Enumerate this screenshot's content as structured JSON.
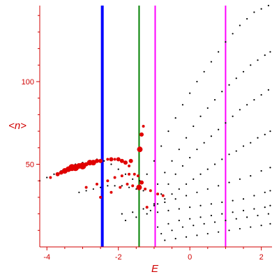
{
  "chart_data": {
    "type": "scatter",
    "title": "",
    "xlabel": "E",
    "ylabel": "<n>",
    "xlim": [
      -4.2,
      2.3
    ],
    "ylim": [
      0,
      146
    ],
    "xticks": [
      -4,
      -2,
      0,
      2
    ],
    "xtick_labels": [
      "-4",
      "-2",
      "0",
      "2"
    ],
    "yticks": [
      50,
      100
    ],
    "ytick_labels": [
      "50",
      "100"
    ],
    "grid": false,
    "colors": {
      "axis": "#d00000",
      "black_points": "#000000",
      "red_points": "#e00000"
    },
    "vertical_lines": [
      {
        "x": -2.45,
        "color": "#0000ff",
        "style": "thick"
      },
      {
        "x": -1.42,
        "color": "#008000",
        "style": "medium"
      },
      {
        "x": -0.97,
        "color": "#ff00ff",
        "style": "medium"
      },
      {
        "x": 1.0,
        "color": "#ff00ff",
        "style": "medium"
      }
    ],
    "black_series": [
      {
        "x": [
          -4.2,
          -4.0,
          -3.8,
          -3.6,
          -3.4,
          -3.2,
          -3.0,
          -2.8,
          -2.6,
          -2.4,
          -2.2,
          -2.0,
          -1.8,
          -1.6,
          -1.4,
          -1.2,
          -1.0,
          -0.8,
          -0.6,
          -0.4,
          -0.2,
          0.0,
          0.2,
          0.4,
          0.6,
          0.8,
          1.0,
          1.2,
          1.4,
          1.6,
          1.8,
          2.0,
          2.2
        ],
        "y": [
          40,
          42,
          44,
          46,
          48,
          50,
          51,
          52,
          53,
          52,
          50,
          47,
          44,
          41,
          40,
          44,
          52,
          61,
          70,
          78,
          86,
          93,
          100,
          106,
          112,
          118,
          124,
          129,
          134,
          138,
          142,
          144,
          146
        ]
      },
      {
        "x": [
          -3.1,
          -2.9,
          -2.7,
          -2.5,
          -2.3,
          -2.1,
          -1.9,
          -1.7,
          -1.5,
          -1.3,
          -1.1,
          -0.9,
          -0.7,
          -0.5,
          -0.3,
          -0.1,
          0.1,
          0.3,
          0.5,
          0.7,
          0.9,
          1.1,
          1.3,
          1.5,
          1.7,
          1.9,
          2.1,
          2.25
        ],
        "y": [
          33,
          34,
          35,
          36,
          37,
          37,
          37,
          36,
          35,
          34,
          34,
          38,
          45,
          52,
          59,
          66,
          73,
          79,
          84,
          89,
          94,
          98,
          102,
          106,
          110,
          113,
          116,
          118
        ]
      },
      {
        "x": [
          -1.0,
          -0.8,
          -0.6,
          -0.4,
          -0.2,
          0.0,
          0.2,
          0.4,
          0.6,
          0.8,
          1.0,
          1.2,
          1.4,
          1.6,
          1.8,
          2.0,
          2.2
        ],
        "y": [
          26,
          32,
          38,
          44,
          49,
          54,
          59,
          63,
          67,
          71,
          75,
          79,
          83,
          86,
          89,
          92,
          95
        ]
      },
      {
        "x": [
          -1.1,
          -0.9,
          -0.7,
          -0.5,
          -0.3,
          -0.1,
          0.1,
          0.3,
          0.5,
          0.7,
          0.9,
          1.1,
          1.3,
          1.5,
          1.7,
          1.9,
          2.1,
          2.25
        ],
        "y": [
          22,
          26,
          29,
          32,
          35,
          38,
          41,
          44,
          47,
          50,
          53,
          56,
          58,
          61,
          63,
          66,
          68,
          70
        ]
      },
      {
        "x": [
          -1.9,
          -1.6,
          -1.3,
          -1.0,
          -0.7,
          -0.4,
          -0.1,
          0.2,
          0.5,
          0.8,
          1.1,
          1.4,
          1.7,
          2.0,
          2.25
        ],
        "y": [
          20,
          21,
          23,
          25,
          27,
          29,
          31,
          33,
          35,
          37,
          39,
          41,
          43,
          46,
          48
        ]
      },
      {
        "x": [
          -1.8,
          -1.5,
          -1.2,
          -0.9,
          -0.6,
          -0.3,
          0.0,
          0.3,
          0.6,
          0.9,
          1.2,
          1.5,
          1.8,
          2.1,
          2.25
        ],
        "y": [
          16,
          18,
          20,
          21,
          22,
          23,
          24,
          25,
          26,
          27,
          28,
          29,
          31,
          33,
          34
        ]
      },
      {
        "x": [
          -0.9,
          -0.6,
          -0.3,
          0.0,
          0.3,
          0.6,
          0.9,
          1.2,
          1.5,
          1.8,
          2.1,
          2.25
        ],
        "y": [
          12,
          14,
          16,
          17,
          18,
          19,
          20,
          21,
          22,
          23,
          24,
          25
        ]
      },
      {
        "x": [
          -0.8,
          -0.5,
          -0.2,
          0.1,
          0.4,
          0.7,
          1.0,
          1.3,
          1.6,
          1.9,
          2.2
        ],
        "y": [
          8,
          10,
          12,
          13,
          14,
          15,
          16,
          17,
          18,
          19,
          20
        ]
      },
      {
        "x": [
          -0.7,
          -0.4,
          -0.1,
          0.2,
          0.5,
          0.8,
          1.1,
          1.4,
          1.7,
          2.0,
          2.25
        ],
        "y": [
          4,
          5,
          6,
          7,
          8,
          9,
          10,
          11,
          12,
          13,
          14
        ]
      }
    ],
    "red_points": [
      {
        "x": -3.9,
        "y": 42,
        "s": 2
      },
      {
        "x": -3.7,
        "y": 44,
        "s": 3
      },
      {
        "x": -3.6,
        "y": 45,
        "s": 3
      },
      {
        "x": -3.5,
        "y": 46,
        "s": 4
      },
      {
        "x": -3.4,
        "y": 47,
        "s": 4
      },
      {
        "x": -3.3,
        "y": 48,
        "s": 5
      },
      {
        "x": -3.2,
        "y": 48,
        "s": 5
      },
      {
        "x": -3.1,
        "y": 49,
        "s": 4
      },
      {
        "x": -3.0,
        "y": 49,
        "s": 5
      },
      {
        "x": -2.9,
        "y": 50,
        "s": 3
      },
      {
        "x": -2.8,
        "y": 51,
        "s": 4
      },
      {
        "x": -2.7,
        "y": 51,
        "s": 4
      },
      {
        "x": -2.6,
        "y": 52,
        "s": 3
      },
      {
        "x": -2.5,
        "y": 52,
        "s": 3
      },
      {
        "x": -2.3,
        "y": 53,
        "s": 2
      },
      {
        "x": -2.2,
        "y": 53,
        "s": 3
      },
      {
        "x": -2.1,
        "y": 53,
        "s": 2
      },
      {
        "x": -2.0,
        "y": 53,
        "s": 3
      },
      {
        "x": -1.9,
        "y": 52,
        "s": 3
      },
      {
        "x": -1.8,
        "y": 51,
        "s": 3
      },
      {
        "x": -1.7,
        "y": 49,
        "s": 2
      },
      {
        "x": -1.65,
        "y": 52,
        "s": 3
      },
      {
        "x": -1.4,
        "y": 59,
        "s": 4
      },
      {
        "x": -1.35,
        "y": 68,
        "s": 3
      },
      {
        "x": -1.3,
        "y": 73,
        "s": 2
      },
      {
        "x": -2.9,
        "y": 36,
        "s": 2
      },
      {
        "x": -2.6,
        "y": 38,
        "s": 2
      },
      {
        "x": -2.3,
        "y": 40,
        "s": 2
      },
      {
        "x": -2.1,
        "y": 42,
        "s": 2
      },
      {
        "x": -1.9,
        "y": 43,
        "s": 2
      },
      {
        "x": -1.7,
        "y": 44,
        "s": 2
      },
      {
        "x": -1.55,
        "y": 44,
        "s": 2
      },
      {
        "x": -1.45,
        "y": 43,
        "s": 2
      },
      {
        "x": -2.5,
        "y": 30,
        "s": 2
      },
      {
        "x": -2.2,
        "y": 33,
        "s": 2
      },
      {
        "x": -1.95,
        "y": 36,
        "s": 2
      },
      {
        "x": -1.75,
        "y": 38,
        "s": 2
      },
      {
        "x": -1.6,
        "y": 37,
        "s": 2
      },
      {
        "x": -1.42,
        "y": 36,
        "s": 4
      },
      {
        "x": -1.35,
        "y": 39,
        "s": 3
      },
      {
        "x": -1.25,
        "y": 35,
        "s": 2
      },
      {
        "x": -1.1,
        "y": 34,
        "s": 2
      },
      {
        "x": -0.9,
        "y": 32,
        "s": 2
      },
      {
        "x": -0.75,
        "y": 31,
        "s": 2
      },
      {
        "x": -1.2,
        "y": 24,
        "s": 2
      }
    ]
  }
}
